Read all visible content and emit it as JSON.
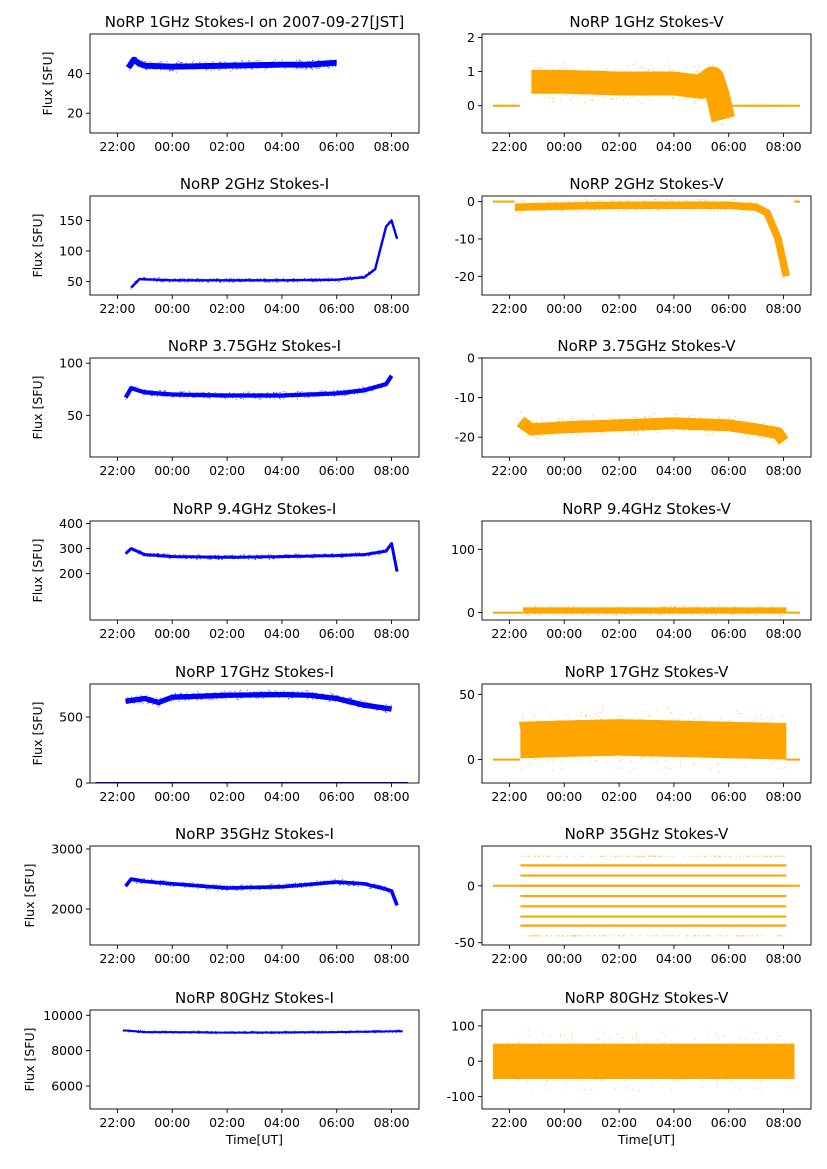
{
  "chart_data": [
    {
      "type": "scatter",
      "title": "NoRP 1GHz Stokes-I on 2007-09-27[JST]",
      "xlabel": "",
      "ylabel": "Flux [SFU]",
      "xlim": [
        -3.0,
        9.0
      ],
      "ylim": [
        10,
        60
      ],
      "xticks": [
        -2,
        0,
        2,
        4,
        6,
        8
      ],
      "xtick_labels": [
        "22:00",
        "00:00",
        "02:00",
        "04:00",
        "06:00",
        "08:00"
      ],
      "yticks": [
        20,
        40
      ],
      "ytick_labels": [
        "20",
        "40"
      ],
      "color": "#0000ff",
      "series": [
        {
          "x": [
            -1.6,
            -1.4,
            -1.2,
            -1.0,
            0,
            2,
            4,
            5,
            6
          ],
          "y": [
            43,
            47,
            45,
            44,
            43.5,
            44,
            44.5,
            44.5,
            45.5
          ],
          "spread": 1.5
        }
      ]
    },
    {
      "type": "scatter",
      "title": "NoRP 1GHz Stokes-V",
      "xlabel": "",
      "ylabel": "",
      "xlim": [
        -3.0,
        9.0
      ],
      "ylim": [
        -0.8,
        2.1
      ],
      "xticks": [
        -2,
        0,
        2,
        4,
        6,
        8
      ],
      "xtick_labels": [
        "22:00",
        "00:00",
        "02:00",
        "04:00",
        "06:00",
        "08:00"
      ],
      "yticks": [
        0,
        1,
        2
      ],
      "ytick_labels": [
        "0",
        "1",
        "2"
      ],
      "color": "#ffa500",
      "series": [
        {
          "x": [
            -1.2,
            0,
            2,
            4,
            5,
            5.4,
            5.6,
            5.8
          ],
          "y": [
            0.7,
            0.7,
            0.65,
            0.65,
            0.55,
            0.8,
            0.3,
            -0.4
          ],
          "spread": 0.35
        },
        {
          "x": [
            6.0,
            8.6
          ],
          "y": [
            0,
            0
          ],
          "spread": 0.01
        },
        {
          "x": [
            -2.6,
            -1.6
          ],
          "y": [
            0,
            0
          ],
          "spread": 0.01
        }
      ]
    },
    {
      "type": "scatter",
      "title": "NoRP 2GHz Stokes-I",
      "xlabel": "",
      "ylabel": "Flux [SFU]",
      "xlim": [
        -3.0,
        9.0
      ],
      "ylim": [
        28,
        190
      ],
      "xticks": [
        -2,
        0,
        2,
        4,
        6,
        8
      ],
      "xtick_labels": [
        "22:00",
        "00:00",
        "02:00",
        "04:00",
        "06:00",
        "08:00"
      ],
      "yticks": [
        50,
        100,
        150
      ],
      "ytick_labels": [
        "50",
        "100",
        "150"
      ],
      "color": "#0000ff",
      "series": [
        {
          "x": [
            -1.5,
            -1.2,
            0,
            4,
            6,
            7,
            7.4,
            7.8,
            8.0,
            8.2
          ],
          "y": [
            40,
            54,
            52,
            52,
            53,
            57,
            70,
            140,
            150,
            120
          ],
          "spread": 2.0
        }
      ]
    },
    {
      "type": "scatter",
      "title": "NoRP 2GHz Stokes-V",
      "xlabel": "",
      "ylabel": "",
      "xlim": [
        -3.0,
        9.0
      ],
      "ylim": [
        -25,
        1.5
      ],
      "xticks": [
        -2,
        0,
        2,
        4,
        6,
        8
      ],
      "xtick_labels": [
        "22:00",
        "00:00",
        "02:00",
        "04:00",
        "06:00",
        "08:00"
      ],
      "yticks": [
        -20,
        -10,
        0
      ],
      "ytick_labels": [
        "-20",
        "-10",
        "0"
      ],
      "color": "#ffa500",
      "series": [
        {
          "x": [
            -1.8,
            0,
            2,
            4,
            6,
            7,
            7.4,
            7.8,
            8.1
          ],
          "y": [
            -1.5,
            -1.2,
            -1,
            -1,
            -1,
            -1.5,
            -3,
            -10,
            -20
          ],
          "spread": 1.0
        },
        {
          "x": [
            -2.6,
            -1.8
          ],
          "y": [
            0,
            0
          ],
          "spread": 0.01
        },
        {
          "x": [
            8.4,
            8.6
          ],
          "y": [
            0,
            0
          ],
          "spread": 0.01
        }
      ]
    },
    {
      "type": "scatter",
      "title": "NoRP 3.75GHz Stokes-I",
      "xlabel": "",
      "ylabel": "Flux [SFU]",
      "xlim": [
        -3.0,
        9.0
      ],
      "ylim": [
        10,
        105
      ],
      "xticks": [
        -2,
        0,
        2,
        4,
        6,
        8
      ],
      "xtick_labels": [
        "22:00",
        "00:00",
        "02:00",
        "04:00",
        "06:00",
        "08:00"
      ],
      "yticks": [
        50,
        100
      ],
      "ytick_labels": [
        "50",
        "100"
      ],
      "color": "#0000ff",
      "series": [
        {
          "x": [
            -1.7,
            -1.5,
            -1.0,
            0,
            2,
            4,
            6,
            7,
            7.8,
            8.0
          ],
          "y": [
            67,
            76,
            72,
            70,
            69,
            69,
            71,
            74,
            80,
            88
          ],
          "spread": 2.0
        }
      ]
    },
    {
      "type": "scatter",
      "title": "NoRP 3.75GHz Stokes-V",
      "xlabel": "",
      "ylabel": "",
      "xlim": [
        -3.0,
        9.0
      ],
      "ylim": [
        -25,
        0
      ],
      "xticks": [
        -2,
        0,
        2,
        4,
        6,
        8
      ],
      "xtick_labels": [
        "22:00",
        "00:00",
        "02:00",
        "04:00",
        "06:00",
        "08:00"
      ],
      "yticks": [
        -20,
        -10,
        0
      ],
      "ytick_labels": [
        "-20",
        "-10",
        "0"
      ],
      "color": "#ffa500",
      "series": [
        {
          "x": [
            -1.6,
            -1.2,
            0,
            2,
            4,
            6,
            7,
            7.8,
            8.0
          ],
          "y": [
            -16,
            -18,
            -17.5,
            -17,
            -16.5,
            -17,
            -18,
            -19,
            -21
          ],
          "spread": 1.5
        }
      ]
    },
    {
      "type": "scatter",
      "title": "NoRP 9.4GHz Stokes-I",
      "xlabel": "",
      "ylabel": "Flux [SFU]",
      "xlim": [
        -3.0,
        9.0
      ],
      "ylim": [
        15,
        410
      ],
      "xticks": [
        -2,
        0,
        2,
        4,
        6,
        8
      ],
      "xtick_labels": [
        "22:00",
        "00:00",
        "02:00",
        "04:00",
        "06:00",
        "08:00"
      ],
      "yticks": [
        200,
        300,
        400
      ],
      "ytick_labels": [
        "200",
        "300",
        "400"
      ],
      "color": "#0000ff",
      "series": [
        {
          "x": [
            -1.7,
            -1.5,
            -1.0,
            0,
            2,
            4,
            6,
            7,
            7.8,
            8.0,
            8.2
          ],
          "y": [
            280,
            300,
            276,
            268,
            265,
            268,
            272,
            276,
            290,
            320,
            208
          ],
          "spread": 6.0
        }
      ]
    },
    {
      "type": "scatter",
      "title": "NoRP 9.4GHz Stokes-V",
      "xlabel": "",
      "ylabel": "",
      "xlim": [
        -3.0,
        9.0
      ],
      "ylim": [
        -12,
        145
      ],
      "xticks": [
        -2,
        0,
        2,
        4,
        6,
        8
      ],
      "xtick_labels": [
        "22:00",
        "00:00",
        "02:00",
        "04:00",
        "06:00",
        "08:00"
      ],
      "yticks": [
        0,
        100
      ],
      "ytick_labels": [
        "0",
        "100"
      ],
      "color": "#ffa500",
      "series": [
        {
          "x": [
            -1.5,
            0,
            2,
            4,
            6,
            8.1
          ],
          "y": [
            3,
            3,
            3,
            3,
            3,
            3
          ],
          "spread": 5.0
        },
        {
          "x": [
            -2.6,
            -1.5
          ],
          "y": [
            -0.5,
            -0.5
          ],
          "spread": 0.01
        },
        {
          "x": [
            8.1,
            8.6
          ],
          "y": [
            -0.5,
            -0.5
          ],
          "spread": 0.01
        }
      ]
    },
    {
      "type": "scatter",
      "title": "NoRP 17GHz Stokes-I",
      "xlabel": "",
      "ylabel": "Flux [SFU]",
      "xlim": [
        -3.0,
        9.0
      ],
      "ylim": [
        0,
        750
      ],
      "xticks": [
        -2,
        0,
        2,
        4,
        6,
        8
      ],
      "xtick_labels": [
        "22:00",
        "00:00",
        "02:00",
        "04:00",
        "06:00",
        "08:00"
      ],
      "yticks": [
        0,
        500
      ],
      "ytick_labels": [
        "0",
        "500"
      ],
      "color": "#0000ff",
      "series": [
        {
          "x": [
            -1.7,
            -1.0,
            -0.5,
            0,
            2,
            4,
            5,
            6,
            7,
            8.0
          ],
          "y": [
            620,
            640,
            610,
            650,
            665,
            670,
            665,
            640,
            590,
            560
          ],
          "spread": 20.0
        },
        {
          "x": [
            -2.8,
            8.6
          ],
          "y": [
            0,
            0
          ],
          "spread": 0.01
        }
      ]
    },
    {
      "type": "scatter",
      "title": "NoRP 17GHz Stokes-V",
      "xlabel": "",
      "ylabel": "",
      "xlim": [
        -3.0,
        9.0
      ],
      "ylim": [
        -18,
        58
      ],
      "xticks": [
        -2,
        0,
        2,
        4,
        6,
        8
      ],
      "xtick_labels": [
        "22:00",
        "00:00",
        "02:00",
        "04:00",
        "06:00",
        "08:00"
      ],
      "yticks": [
        0,
        50
      ],
      "ytick_labels": [
        "0",
        "50"
      ],
      "color": "#ffa500",
      "series": [
        {
          "x": [
            -1.6,
            0,
            2,
            4,
            6,
            8.1
          ],
          "y": [
            15,
            16,
            17,
            16,
            15,
            14
          ],
          "spread": 14.0
        },
        {
          "x": [
            -2.6,
            -1.6
          ],
          "y": [
            0,
            0
          ],
          "spread": 0.01
        },
        {
          "x": [
            8.1,
            8.6
          ],
          "y": [
            0,
            0
          ],
          "spread": 0.01
        }
      ]
    },
    {
      "type": "scatter",
      "title": "NoRP 35GHz Stokes-I",
      "xlabel": "",
      "ylabel": "Flux [SFU]",
      "xlim": [
        -3.0,
        9.0
      ],
      "ylim": [
        1400,
        3050
      ],
      "xticks": [
        -2,
        0,
        2,
        4,
        6,
        8
      ],
      "xtick_labels": [
        "22:00",
        "00:00",
        "02:00",
        "04:00",
        "06:00",
        "08:00"
      ],
      "yticks": [
        2000,
        3000
      ],
      "ytick_labels": [
        "2000",
        "3000"
      ],
      "color": "#0000ff",
      "series": [
        {
          "x": [
            -1.7,
            -1.5,
            -1.0,
            0,
            2,
            4,
            6,
            7,
            7.8,
            8.0,
            8.2
          ],
          "y": [
            2380,
            2500,
            2460,
            2420,
            2350,
            2370,
            2450,
            2420,
            2330,
            2300,
            2060
          ],
          "spread": 30.0
        }
      ]
    },
    {
      "type": "scatter",
      "title": "NoRP 35GHz Stokes-V",
      "xlabel": "",
      "ylabel": "",
      "xlim": [
        -3.0,
        9.0
      ],
      "ylim": [
        -52,
        35
      ],
      "xticks": [
        -2,
        0,
        2,
        4,
        6,
        8
      ],
      "xtick_labels": [
        "22:00",
        "00:00",
        "02:00",
        "04:00",
        "06:00",
        "08:00"
      ],
      "yticks": [
        -50,
        0
      ],
      "ytick_labels": [
        "-50",
        "0"
      ],
      "color": "#ffa500",
      "levels": [
        -35,
        -27,
        -18,
        -9,
        0,
        9,
        18
      ],
      "series": [
        {
          "x": [
            -2.6,
            8.6
          ],
          "y": [
            0,
            0
          ],
          "spread": 0.01
        }
      ]
    },
    {
      "type": "scatter",
      "title": "NoRP 80GHz Stokes-I",
      "xlabel": "Time[UT]",
      "ylabel": "Flux [SFU]",
      "xlim": [
        -3.0,
        9.0
      ],
      "ylim": [
        4700,
        10300
      ],
      "xticks": [
        -2,
        0,
        2,
        4,
        6,
        8
      ],
      "xtick_labels": [
        "22:00",
        "00:00",
        "02:00",
        "04:00",
        "06:00",
        "08:00"
      ],
      "yticks": [
        6000,
        8000,
        10000
      ],
      "ytick_labels": [
        "6000",
        "8000",
        "10000"
      ],
      "color": "#0000ff",
      "series": [
        {
          "x": [
            -1.8,
            -1.0,
            0,
            2,
            4,
            6,
            8.4
          ],
          "y": [
            9150,
            9050,
            9050,
            9020,
            9030,
            9050,
            9100
          ],
          "spread": 50.0
        }
      ]
    },
    {
      "type": "scatter",
      "title": "NoRP 80GHz Stokes-V",
      "xlabel": "Time[UT]",
      "ylabel": "",
      "xlim": [
        -3.0,
        9.0
      ],
      "ylim": [
        -135,
        145
      ],
      "xticks": [
        -2,
        0,
        2,
        4,
        6,
        8
      ],
      "xtick_labels": [
        "22:00",
        "00:00",
        "02:00",
        "04:00",
        "06:00",
        "08:00"
      ],
      "yticks": [
        -100,
        0,
        100
      ],
      "ytick_labels": [
        "-100",
        "0",
        "100"
      ],
      "color": "#ffa500",
      "series": [
        {
          "x": [
            -2.6,
            0,
            2,
            4,
            6,
            8.4
          ],
          "y": [
            0,
            0,
            0,
            0,
            0,
            0
          ],
          "spread": 50.0
        }
      ]
    }
  ]
}
